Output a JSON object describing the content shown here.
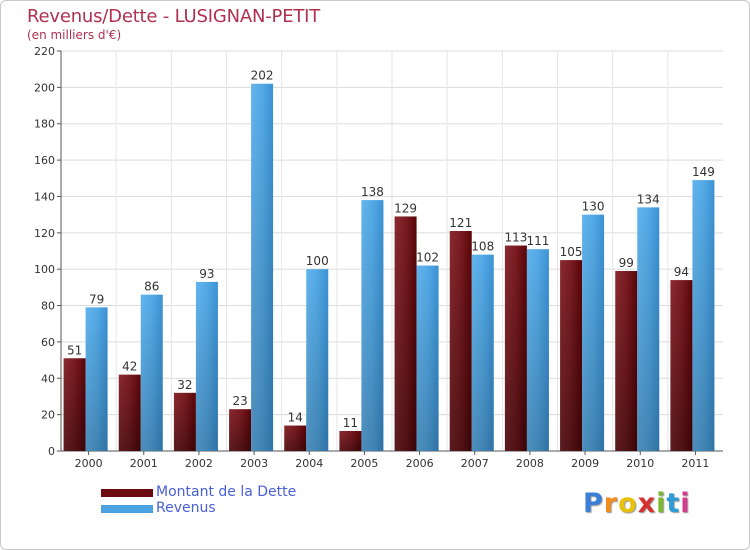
{
  "colors": {
    "dette": "#6b0a10",
    "dette_light": "#8c2b30",
    "revenus": "#4aa3e0",
    "revenus_light": "#6bbaf0",
    "title": "#b03050",
    "legend_text": "#4a60d8"
  },
  "chart_data": {
    "type": "bar",
    "title": "Revenus/Dette - LUSIGNAN-PETIT",
    "subtitle": "(en milliers d'€)",
    "xlabel": "",
    "ylabel": "",
    "ylim": [
      0,
      220
    ],
    "yticks": [
      0,
      20,
      40,
      60,
      80,
      100,
      120,
      140,
      160,
      180,
      200,
      220
    ],
    "grid": true,
    "legend_position": "bottom-left",
    "categories": [
      "2000",
      "2001",
      "2002",
      "2003",
      "2004",
      "2005",
      "2006",
      "2007",
      "2008",
      "2009",
      "2010",
      "2011"
    ],
    "series": [
      {
        "name": "Montant de la Dette",
        "values": [
          51,
          42,
          32,
          23,
          14,
          11,
          129,
          121,
          113,
          105,
          99,
          94
        ]
      },
      {
        "name": "Revenus",
        "values": [
          79,
          86,
          93,
          202,
          100,
          138,
          102,
          108,
          111,
          130,
          134,
          149
        ]
      }
    ]
  },
  "logo": {
    "text": "Proxiti",
    "letters": [
      "P",
      "r",
      "o",
      "x",
      "i",
      "t",
      "i"
    ],
    "letter_colors": [
      "#3b7fd6",
      "#f28c1a",
      "#e8c20a",
      "#d6302e",
      "#7ab82e",
      "#2e9bd6",
      "#d63a8a"
    ]
  }
}
